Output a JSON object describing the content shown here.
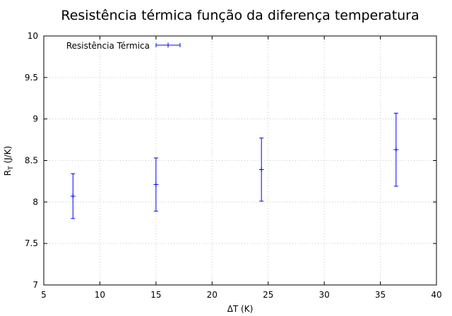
{
  "chart_data": {
    "type": "scatter",
    "title": "Resistência térmica função da diferença temperatura",
    "xlabel": "ΔT (K)",
    "ylabel_main": "R",
    "ylabel_sub": "T",
    "ylabel_unit": " (J/K)",
    "xlim": [
      5,
      40
    ],
    "ylim": [
      7,
      10
    ],
    "x_ticks": [
      "5",
      "10",
      "15",
      "20",
      "25",
      "30",
      "35",
      "40"
    ],
    "y_ticks": [
      "7",
      "7.5",
      "8",
      "8.5",
      "9",
      "9.5",
      "10"
    ],
    "grid": true,
    "legend_position": "top-left",
    "series": [
      {
        "name": "Resistência Térmica",
        "color": "#0000ff",
        "points": [
          {
            "x": 7.6,
            "y": 8.07,
            "err": 0.27
          },
          {
            "x": 15.0,
            "y": 8.21,
            "err": 0.32
          },
          {
            "x": 24.4,
            "y": 8.39,
            "err": 0.38
          },
          {
            "x": 36.4,
            "y": 8.63,
            "err": 0.44
          }
        ]
      }
    ]
  }
}
